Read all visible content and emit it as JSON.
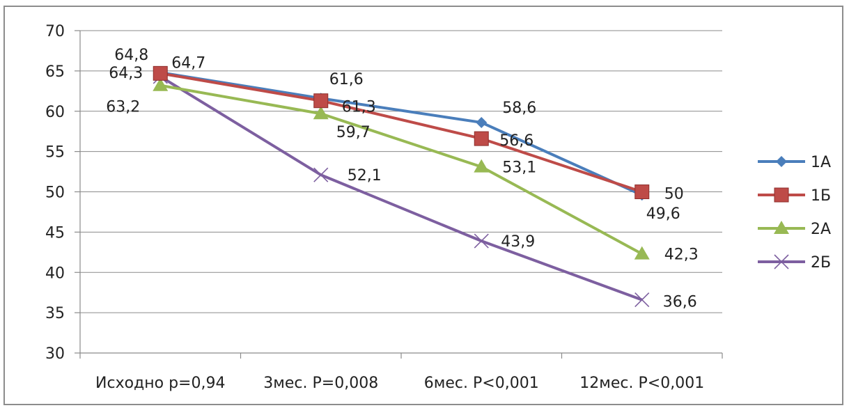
{
  "chart_data": {
    "type": "line",
    "categories": [
      "Исходно p=0,94",
      "3мес. P=0,008",
      "6мес. P<0,001",
      "12мес. P<0,001"
    ],
    "ylim": [
      30,
      70
    ],
    "yticks": [
      30,
      35,
      40,
      45,
      50,
      55,
      60,
      65,
      70
    ],
    "ytick_labels": [
      "30",
      "35",
      "40",
      "45",
      "50",
      "55",
      "60",
      "65",
      "70"
    ],
    "grid": true,
    "legend": "right",
    "series": [
      {
        "name": "1А",
        "values": [
          64.8,
          61.6,
          58.6,
          49.6
        ],
        "labels": [
          "64,8",
          "61,6",
          "58,6",
          "49,6"
        ],
        "color": "#4a7ebb",
        "marker": "diamond"
      },
      {
        "name": "1Б",
        "values": [
          64.7,
          61.3,
          56.6,
          50
        ],
        "labels": [
          "64,7",
          "61,3",
          "56,6",
          "50"
        ],
        "color": "#be4b48",
        "marker": "square"
      },
      {
        "name": "2А",
        "values": [
          63.2,
          59.7,
          53.1,
          42.3
        ],
        "labels": [
          "63,2",
          "59,7",
          "53,1",
          "42,3"
        ],
        "color": "#98b954",
        "marker": "triangle"
      },
      {
        "name": "2Б",
        "values": [
          64.3,
          52.1,
          43.9,
          36.6
        ],
        "labels": [
          "64,3",
          "52,1",
          "43,9",
          "36,6"
        ],
        "color": "#7d5fa0",
        "marker": "x"
      }
    ]
  }
}
